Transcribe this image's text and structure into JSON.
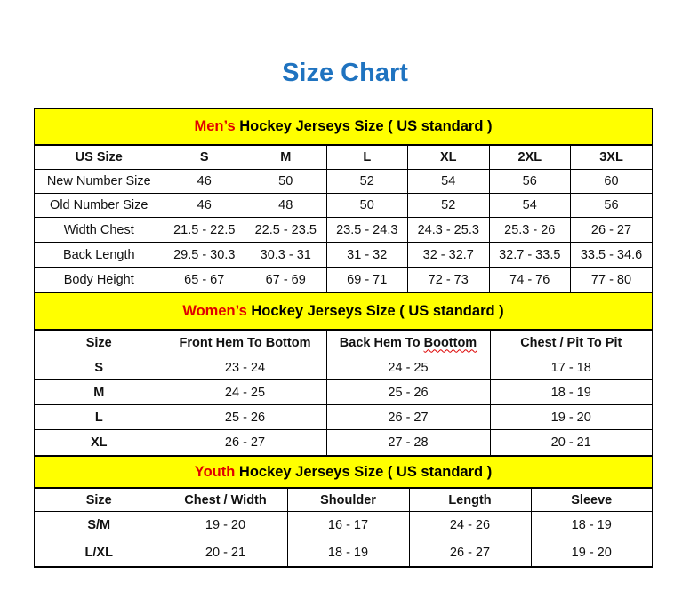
{
  "title": "Size Chart",
  "colors": {
    "title": "#1f73c0",
    "section_bg": "#ffff00",
    "highlight": "#e00000"
  },
  "men": {
    "heading_highlight": "Men’s",
    "heading_rest": " Hockey Jerseys Size ( US standard )",
    "header": [
      "US Size",
      "S",
      "M",
      "L",
      "XL",
      "2XL",
      "3XL"
    ],
    "rows": [
      [
        "New Number Size",
        "46",
        "50",
        "52",
        "54",
        "56",
        "60"
      ],
      [
        "Old Number Size",
        "46",
        "48",
        "50",
        "52",
        "54",
        "56"
      ],
      [
        "Width Chest",
        "21.5 - 22.5",
        "22.5 - 23.5",
        "23.5 - 24.3",
        "24.3 - 25.3",
        "25.3 - 26",
        "26 - 27"
      ],
      [
        "Back Length",
        "29.5 - 30.3",
        "30.3 - 31",
        "31 - 32",
        "32 - 32.7",
        "32.7 - 33.5",
        "33.5 - 34.6"
      ],
      [
        "Body Height",
        "65 - 67",
        "67 - 69",
        "69 - 71",
        "72 - 73",
        "74 - 76",
        "77 - 80"
      ]
    ]
  },
  "women": {
    "heading_highlight": "Women’s",
    "heading_rest": " Hockey Jerseys Size ( US standard )",
    "header": [
      "Size",
      "Front Hem To Bottom",
      "Back Hem To ",
      "Chest / Pit To Pit"
    ],
    "header_misspelled": "Boottom",
    "rows": [
      [
        "S",
        "23 - 24",
        "24 - 25",
        "17 - 18"
      ],
      [
        "M",
        "24 - 25",
        "25 - 26",
        "18 - 19"
      ],
      [
        "L",
        "25 - 26",
        "26 - 27",
        "19 - 20"
      ],
      [
        "XL",
        "26 - 27",
        "27 - 28",
        "20 - 21"
      ]
    ]
  },
  "youth": {
    "heading_highlight": "Youth",
    "heading_rest": " Hockey Jerseys Size ( US standard )",
    "header": [
      "Size",
      "Chest / Width",
      "Shoulder",
      "Length",
      "Sleeve"
    ],
    "rows": [
      [
        "S/M",
        "19 - 20",
        "16 - 17",
        "24 - 26",
        "18 - 19"
      ],
      [
        "L/XL",
        "20 - 21",
        "18 - 19",
        "26 - 27",
        "19 - 20"
      ]
    ]
  }
}
